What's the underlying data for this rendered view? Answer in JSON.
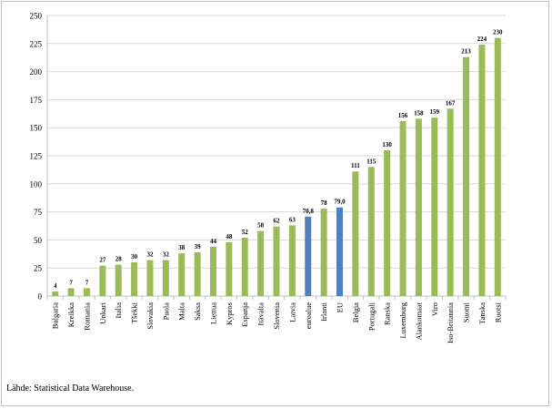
{
  "chart_data": {
    "type": "bar",
    "title": "",
    "xlabel": "",
    "ylabel": "",
    "ylim": [
      0,
      250
    ],
    "yticks": [
      0,
      25,
      50,
      75,
      100,
      125,
      150,
      175,
      200,
      225,
      250
    ],
    "grid": true,
    "categories": [
      "Bulgaria",
      "Kreikka",
      "Romania",
      "Unkari",
      "Italia",
      "Tšekki",
      "Slovakia",
      "Puola",
      "Malta",
      "Saksa",
      "Liettua",
      "Kypros",
      "Espanja",
      "Itävalta",
      "Slovenia",
      "Latvia",
      "euroalue",
      "Irlanti",
      "EU",
      "Belgia",
      "Portugali",
      "Ranska",
      "Luxemburg",
      "Alankomaat",
      "Viro",
      "Iso-Britannia",
      "Suomi",
      "Tanska",
      "Ruotsi"
    ],
    "values": [
      4,
      7,
      7,
      27,
      28,
      30,
      32,
      32,
      38,
      39,
      44,
      48,
      52,
      58,
      62,
      63,
      70.8,
      78,
      79.0,
      111,
      115,
      130,
      156,
      158,
      159,
      167,
      213,
      224,
      230
    ],
    "data_labels": [
      "4",
      "7",
      "7",
      "27",
      "28",
      "30",
      "32",
      "32",
      "38",
      "39",
      "44",
      "48",
      "52",
      "58",
      "62",
      "63",
      "70,8",
      "78",
      "79,0",
      "111",
      "115",
      "130",
      "156",
      "158",
      "159",
      "167",
      "213",
      "224",
      "230"
    ],
    "highlighted": [
      "euroalue",
      "EU"
    ],
    "colors": {
      "default": "#9bbb59",
      "highlight": "#4f81bd",
      "grid": "#d9d9d9",
      "axis": "#bfbfbf"
    }
  },
  "footer": {
    "source": "Lähde: Statistical Data Warehouse."
  }
}
